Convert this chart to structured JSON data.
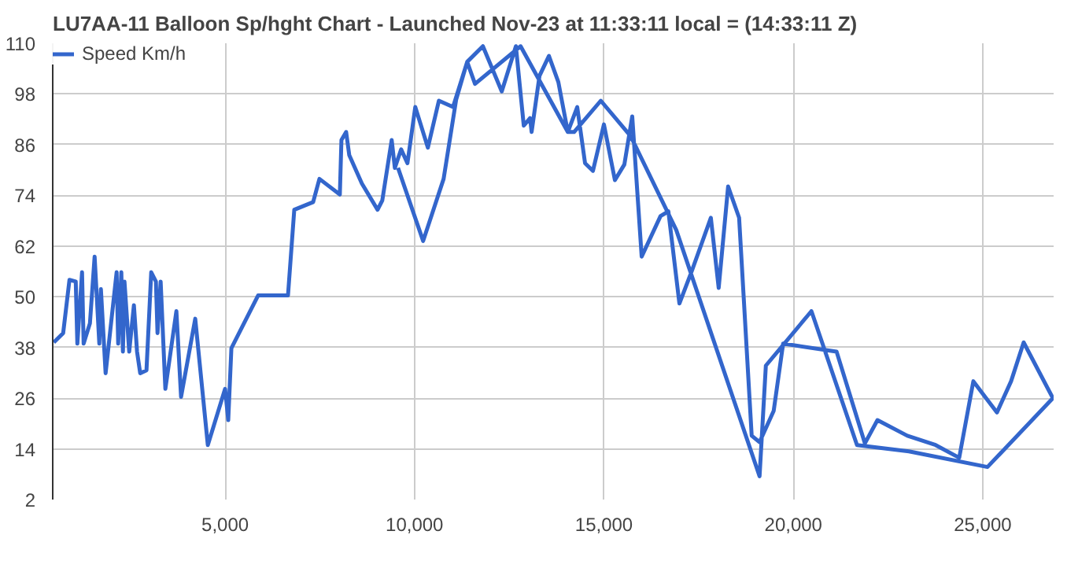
{
  "chart_data": {
    "type": "line",
    "title": "LU7AA-11 Balloon Sp/hght Chart - Launched Nov-23 at 11:33:11 local = (14:33:11 Z)",
    "series": [
      {
        "name": "Speed Km/h",
        "color": "#3366cc",
        "x": [
          477,
          726,
          892,
          1058,
          1100,
          1224,
          1266,
          1432,
          1556,
          1680,
          1722,
          1846,
          2137,
          2178,
          2261,
          2303,
          2344,
          2469,
          2593,
          2676,
          2759,
          2925,
          3050,
          3174,
          3216,
          3299,
          3423,
          3714,
          3838,
          4212,
          4544,
          5000,
          5083,
          5166,
          5871,
          6660,
          6826,
          7324,
          7490,
          8029,
          8071,
          8195,
          8278,
          8610,
          9025,
          9149,
          9398,
          9481,
          9647,
          9813,
          10020,
          10353,
          10643,
          11017,
          11390,
          11805,
          12303,
          12676,
          12884,
          13050,
          13091,
          13299,
          13548,
          13797,
          14046,
          14295,
          14502,
          14710,
          15000,
          15290,
          15539,
          15747,
          15996,
          16494,
          16701,
          16992,
          17324,
          17822,
          18029,
          18278,
          18568,
          18900,
          19108,
          19481,
          19730,
          21141,
          21888,
          22220,
          23008,
          23755,
          24378,
          24751,
          25373,
          25747,
          26079,
          26850,
          25124,
          23050,
          21680,
          20477,
          19274,
          19108,
          16909,
          15706,
          14917,
          14212,
          14046,
          12800,
          11597,
          11390,
          11100,
          10768,
          10228,
          9564
        ],
        "values": [
          39.2,
          41.4,
          54,
          53.6,
          38.9,
          55.8,
          38.9,
          43.7,
          59.5,
          38.9,
          51.8,
          31.9,
          55.8,
          38.9,
          55.8,
          37,
          53.6,
          37,
          48,
          37,
          31.9,
          32.6,
          55.8,
          53.6,
          41.4,
          53.6,
          28.2,
          46.6,
          26.3,
          44.8,
          14.9,
          28.2,
          20.8,
          37.8,
          50.3,
          50.3,
          70.6,
          72.4,
          77.9,
          74.2,
          87.1,
          89,
          83.5,
          76.8,
          70.6,
          72.8,
          87.1,
          80.5,
          84.9,
          81.6,
          94.9,
          85.3,
          96.4,
          94.9,
          105.6,
          109.3,
          98.6,
          109.3,
          90.5,
          92.3,
          89,
          102.3,
          107,
          100.8,
          89,
          94.9,
          81.6,
          79.8,
          90.8,
          77.6,
          81.3,
          92.7,
          59.5,
          69.1,
          70.2,
          48.4,
          56.2,
          68.7,
          52.1,
          76.1,
          68.7,
          17.1,
          15.6,
          23,
          38.9,
          37,
          15.3,
          20.8,
          17.1,
          14.9,
          11.9,
          30,
          22.6,
          30,
          39.2,
          26,
          9.7,
          13.4,
          14.9,
          46.6,
          33.7,
          7.5,
          65.8,
          88,
          96.4,
          89,
          89,
          109.3,
          100.4,
          105.6,
          96.7,
          77.9,
          63.2,
          80.5
        ]
      }
    ],
    "xlim": [
      450,
      26870
    ],
    "xticks": [
      {
        "value": 5000,
        "label": "5,000"
      },
      {
        "value": 10000,
        "label": "10,000"
      },
      {
        "value": 15000,
        "label": "15,000"
      },
      {
        "value": 20000,
        "label": "20,000"
      },
      {
        "value": 25000,
        "label": "25,000"
      }
    ],
    "ylim": [
      2,
      110
    ],
    "yticks": [
      2,
      14,
      26,
      38,
      50,
      62,
      74,
      86,
      98,
      110
    ],
    "grid": true,
    "legend": "top left",
    "marker": "none",
    "line_style": "solid"
  }
}
